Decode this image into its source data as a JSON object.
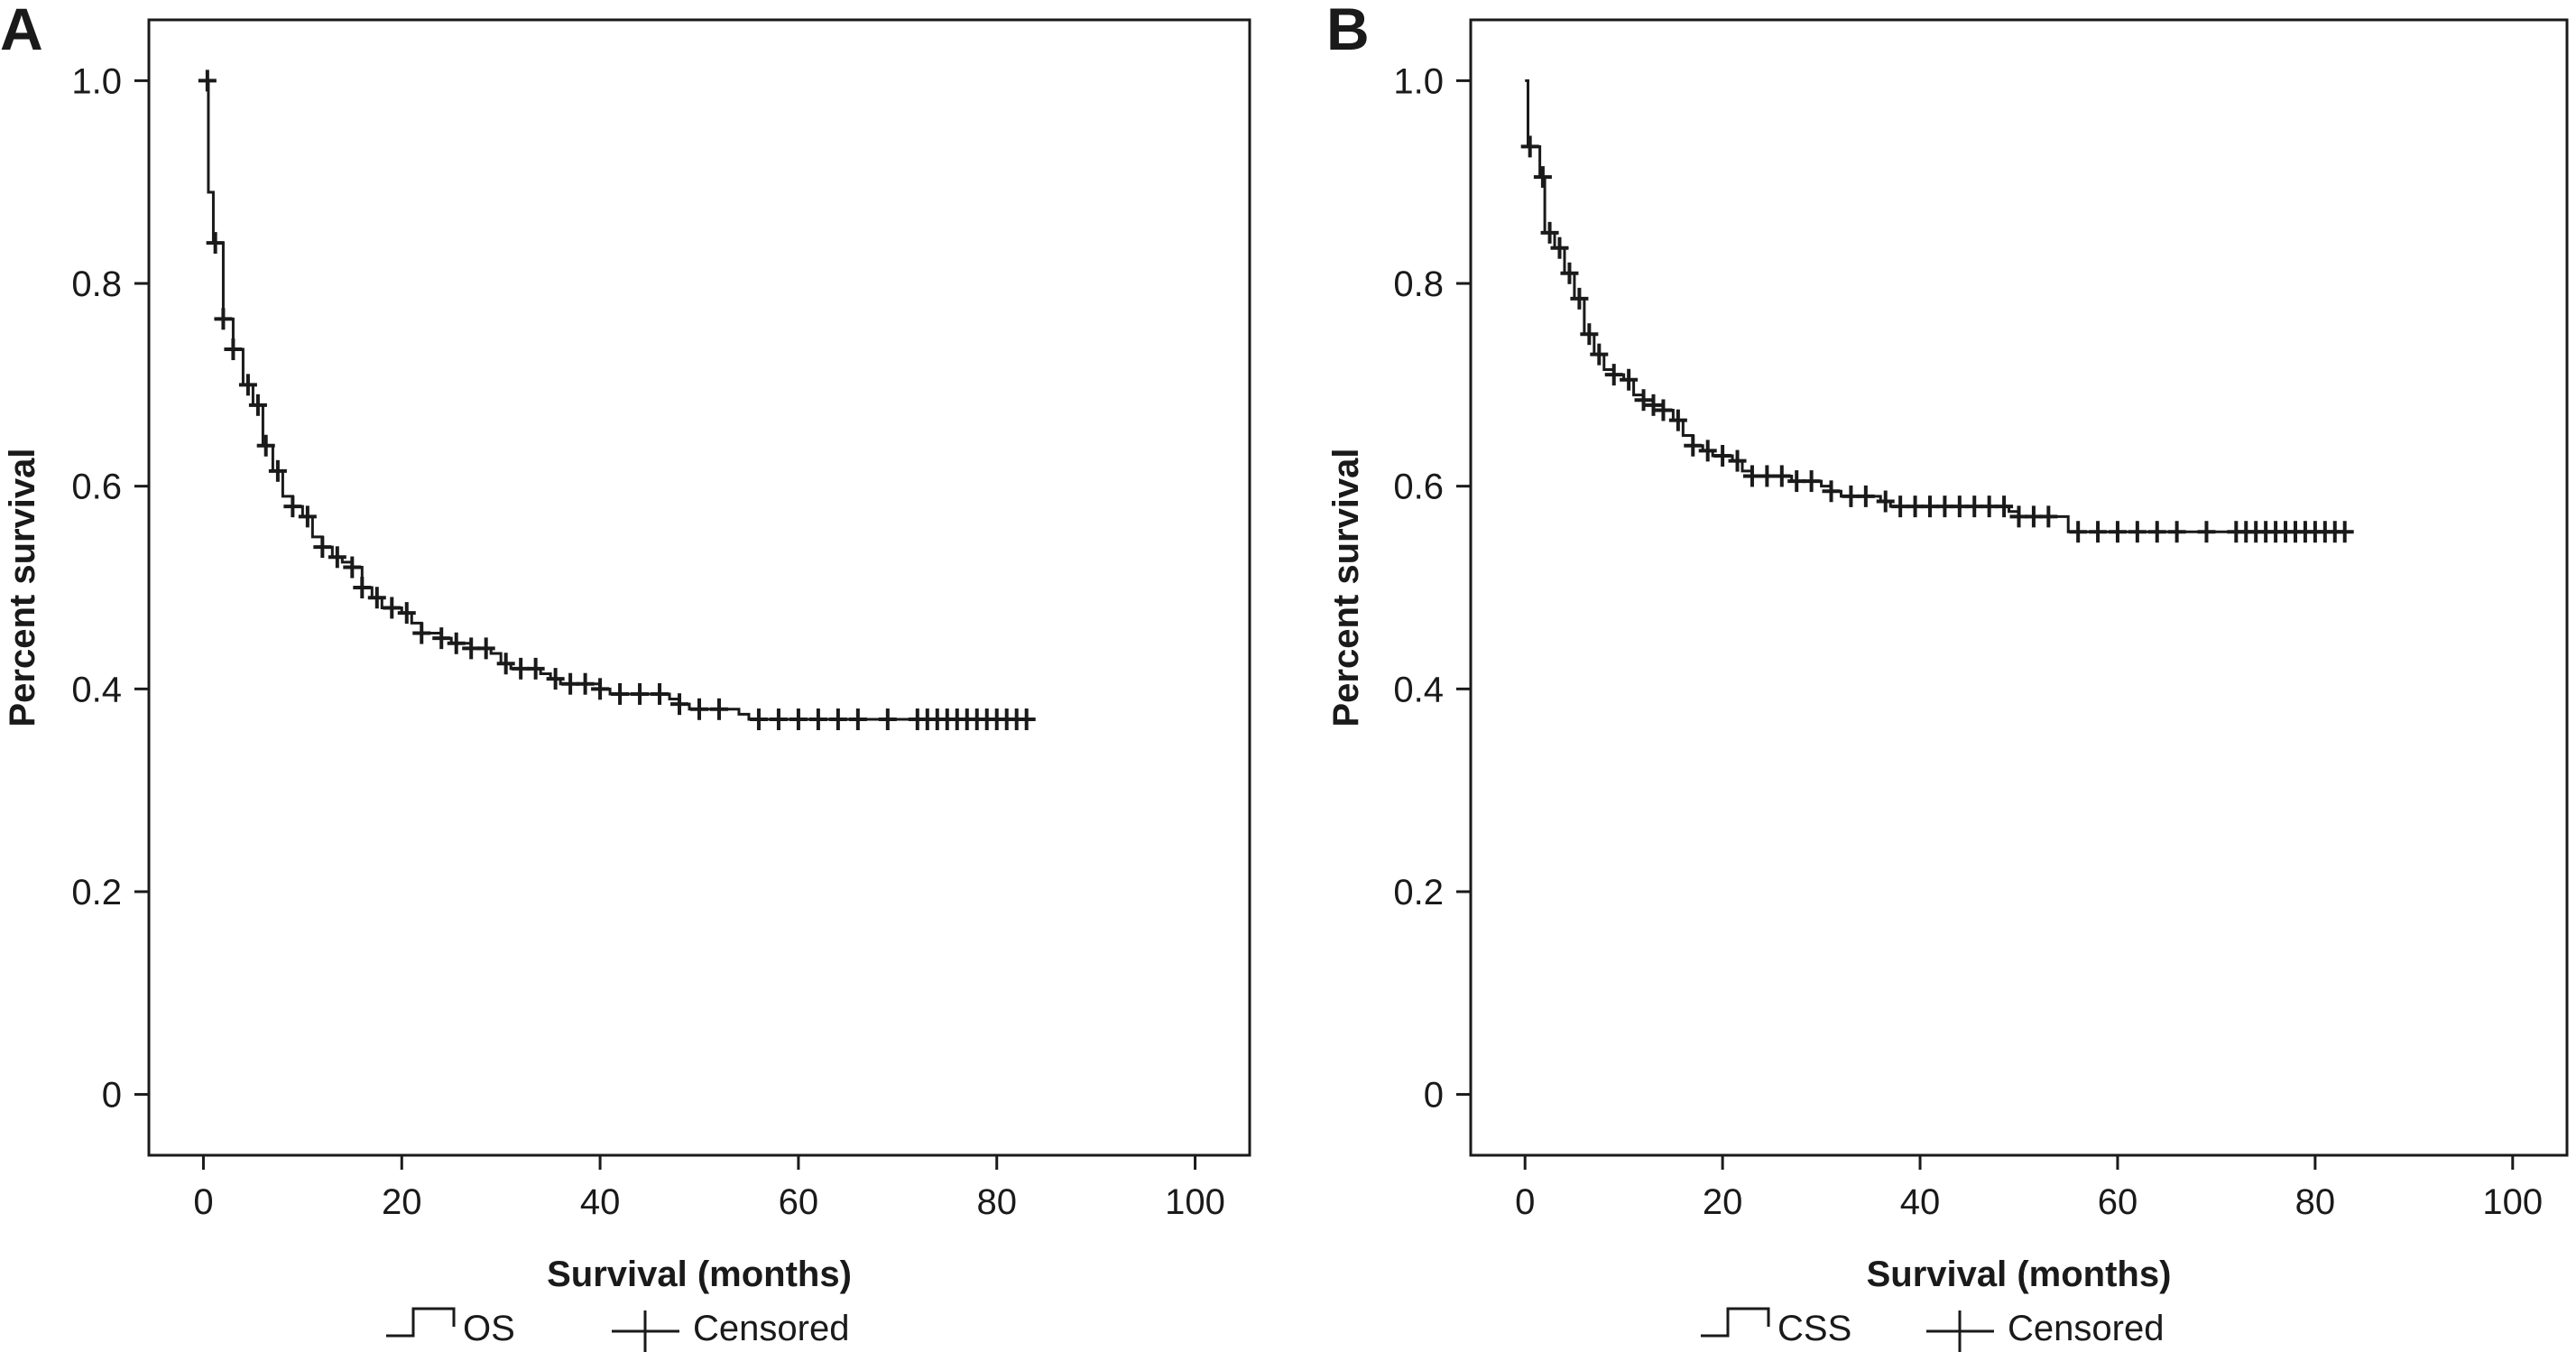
{
  "chart_data": [
    {
      "type": "line",
      "subtype": "kaplan-meier step",
      "panel_label": "A",
      "xlabel": "Survival (months)",
      "ylabel": "Percent survival",
      "xlim": [
        -5.5,
        105.5
      ],
      "ylim": [
        -0.06,
        1.06
      ],
      "xticks": [
        0,
        20,
        40,
        60,
        80,
        100
      ],
      "yticks": [
        0,
        0.2,
        0.4,
        0.6,
        0.8,
        1.0
      ],
      "ytick_labels": [
        "0",
        "0.2",
        "0.4",
        "0.6",
        "0.8",
        "1.0"
      ],
      "grid": false,
      "legend": {
        "placement": "bottom",
        "entries": [
          "OS",
          "Censored"
        ]
      },
      "series": [
        {
          "name": "OS",
          "steps": [
            [
              0,
              1.0
            ],
            [
              0.5,
              0.89
            ],
            [
              1,
              0.84
            ],
            [
              2,
              0.765
            ],
            [
              3,
              0.735
            ],
            [
              4,
              0.7
            ],
            [
              5,
              0.68
            ],
            [
              6,
              0.64
            ],
            [
              7,
              0.615
            ],
            [
              8,
              0.59
            ],
            [
              9,
              0.58
            ],
            [
              10,
              0.57
            ],
            [
              11,
              0.55
            ],
            [
              12,
              0.54
            ],
            [
              13,
              0.53
            ],
            [
              14,
              0.525
            ],
            [
              15,
              0.52
            ],
            [
              16,
              0.5
            ],
            [
              17,
              0.49
            ],
            [
              18,
              0.48
            ],
            [
              20,
              0.475
            ],
            [
              21,
              0.465
            ],
            [
              22,
              0.455
            ],
            [
              24,
              0.45
            ],
            [
              25,
              0.445
            ],
            [
              27,
              0.44
            ],
            [
              29,
              0.435
            ],
            [
              30,
              0.425
            ],
            [
              31,
              0.42
            ],
            [
              34,
              0.415
            ],
            [
              35,
              0.41
            ],
            [
              36,
              0.405
            ],
            [
              40,
              0.4
            ],
            [
              41,
              0.395
            ],
            [
              47,
              0.39
            ],
            [
              48,
              0.385
            ],
            [
              49,
              0.38
            ],
            [
              54,
              0.375
            ],
            [
              55,
              0.37
            ]
          ],
          "end_x": 83,
          "censored_x": [
            0.4,
            1.2,
            2.0,
            3.0,
            4.5,
            5.5,
            6.3,
            7.5,
            9.0,
            10.5,
            12.0,
            13.5,
            15.0,
            16.0,
            17.5,
            19.0,
            20.5,
            22.0,
            24.0,
            25.5,
            27.0,
            28.5,
            30.5,
            32.0,
            33.5,
            35.5,
            37.0,
            38.5,
            40.0,
            42.0,
            44.0,
            46.0,
            48.0,
            50.0,
            52.0,
            56.0,
            58.0,
            60.0,
            62.0,
            64.0,
            66.0,
            69.0,
            72.0,
            73.0,
            74.0,
            75.0,
            76.0,
            77.0,
            78.0,
            79.0,
            80.0,
            81.0,
            82.0,
            83.0
          ]
        }
      ]
    },
    {
      "type": "line",
      "subtype": "kaplan-meier step",
      "panel_label": "B",
      "xlabel": "Survival (months)",
      "ylabel": "Percent survival",
      "xlim": [
        -5.5,
        105.5
      ],
      "ylim": [
        -0.06,
        1.06
      ],
      "xticks": [
        0,
        20,
        40,
        60,
        80,
        100
      ],
      "yticks": [
        0,
        0.2,
        0.4,
        0.6,
        0.8,
        1.0
      ],
      "ytick_labels": [
        "0",
        "0.2",
        "0.4",
        "0.6",
        "0.8",
        "1.0"
      ],
      "grid": false,
      "legend": {
        "placement": "bottom",
        "entries": [
          "CSS",
          "Censored"
        ]
      },
      "series": [
        {
          "name": "CSS",
          "steps": [
            [
              0,
              1.0
            ],
            [
              0.3,
              0.935
            ],
            [
              1.5,
              0.905
            ],
            [
              2,
              0.85
            ],
            [
              3,
              0.835
            ],
            [
              4,
              0.81
            ],
            [
              5,
              0.785
            ],
            [
              6,
              0.75
            ],
            [
              7,
              0.73
            ],
            [
              8,
              0.715
            ],
            [
              9,
              0.71
            ],
            [
              10,
              0.705
            ],
            [
              11,
              0.69
            ],
            [
              12,
              0.685
            ],
            [
              13,
              0.68
            ],
            [
              14,
              0.675
            ],
            [
              15,
              0.665
            ],
            [
              16,
              0.65
            ],
            [
              17,
              0.64
            ],
            [
              18,
              0.635
            ],
            [
              19,
              0.63
            ],
            [
              21,
              0.625
            ],
            [
              22,
              0.615
            ],
            [
              23,
              0.61
            ],
            [
              27,
              0.605
            ],
            [
              30,
              0.6
            ],
            [
              31,
              0.595
            ],
            [
              32,
              0.59
            ],
            [
              36,
              0.585
            ],
            [
              37,
              0.58
            ],
            [
              49,
              0.575
            ],
            [
              50,
              0.57
            ],
            [
              55,
              0.555
            ]
          ],
          "end_x": 83.5,
          "censored_x": [
            0.5,
            1.8,
            2.5,
            3.5,
            4.5,
            5.5,
            6.5,
            7.5,
            9.0,
            10.5,
            12.0,
            13.0,
            14.0,
            15.5,
            17.0,
            18.5,
            20.0,
            21.5,
            23.0,
            24.5,
            26.0,
            27.5,
            29.0,
            31.0,
            33.0,
            34.5,
            36.5,
            38.0,
            39.5,
            41.0,
            42.5,
            44.0,
            45.5,
            47.0,
            48.5,
            50.0,
            51.5,
            53.0,
            56.0,
            58.0,
            60.0,
            62.0,
            64.0,
            66.0,
            69.0,
            72.0,
            73.0,
            74.0,
            75.0,
            76.0,
            77.0,
            78.0,
            79.0,
            80.0,
            81.0,
            82.0,
            83.0
          ]
        }
      ]
    }
  ]
}
